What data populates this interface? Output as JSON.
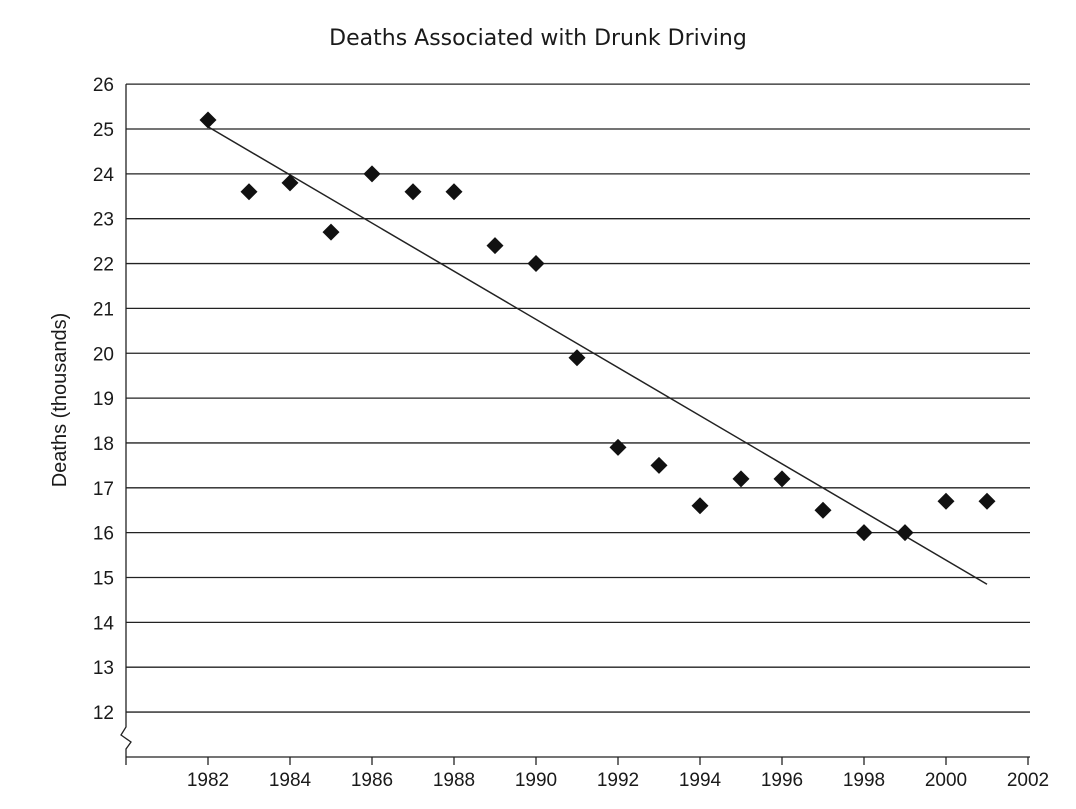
{
  "chart_data": {
    "type": "scatter",
    "title": "Deaths Associated with Drunk Driving",
    "xlabel": "",
    "ylabel": "Deaths (thousands)",
    "xlim": [
      1980,
      2002
    ],
    "ylim": [
      11.5,
      26
    ],
    "x_ticks": [
      1982,
      1984,
      1986,
      1988,
      1990,
      1992,
      1994,
      1996,
      1998,
      2000,
      2002
    ],
    "y_ticks": [
      12,
      13,
      14,
      15,
      16,
      17,
      18,
      19,
      20,
      21,
      22,
      23,
      24,
      25,
      26
    ],
    "y_axis_break": true,
    "grid": "horizontal",
    "legend": "none",
    "series": [
      {
        "x": [
          1982,
          1983,
          1984,
          1985,
          1986,
          1987,
          1988,
          1989,
          1990,
          1991,
          1992,
          1993,
          1994,
          1995,
          1996,
          1997,
          1998,
          1999,
          2000,
          2001
        ],
        "y": [
          25.2,
          23.6,
          23.8,
          22.7,
          24.0,
          23.6,
          23.6,
          22.4,
          22.0,
          19.9,
          17.9,
          17.5,
          16.6,
          17.2,
          17.2,
          16.5,
          16.0,
          16.0,
          16.7,
          16.7
        ],
        "marker": "diamond",
        "color": "#111111"
      }
    ],
    "trend_line": {
      "x": [
        1982,
        2001
      ],
      "y": [
        25.05,
        14.85
      ]
    }
  }
}
